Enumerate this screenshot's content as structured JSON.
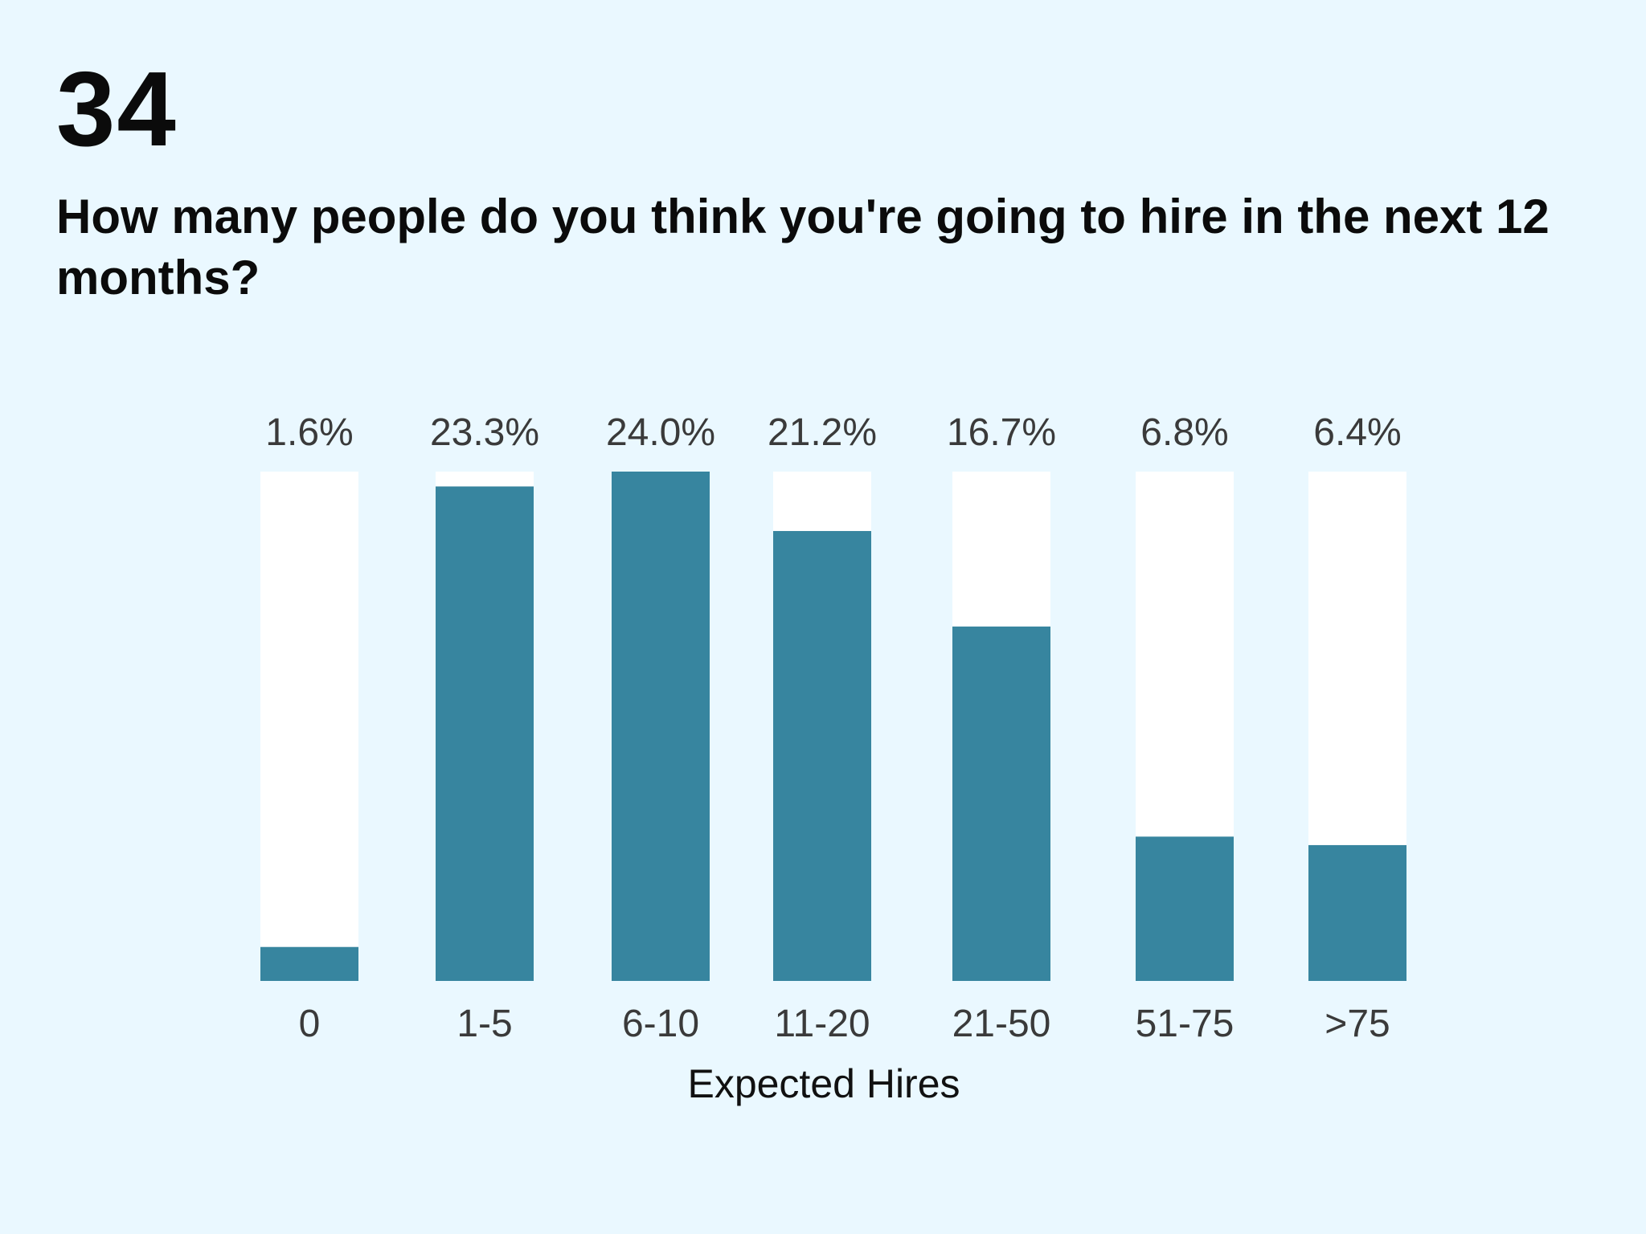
{
  "slide": {
    "number": "34",
    "question": "How many people do you think you're going to hire in the next 12 months?"
  },
  "colors": {
    "background": "#eaf8ff",
    "bar_fill": "#37859f",
    "bar_track": "#ffffff"
  },
  "chart_data": {
    "type": "bar",
    "categories": [
      "0",
      "1-5",
      "6-10",
      "11-20",
      "21-50",
      "51-75",
      ">75"
    ],
    "values": [
      1.6,
      23.3,
      24.0,
      21.2,
      16.7,
      6.8,
      6.4
    ],
    "value_labels": [
      "1.6%",
      "23.3%",
      "24.0%",
      "21.2%",
      "16.7%",
      "6.8%",
      "6.4%"
    ],
    "xlabel": "Expected Hires",
    "ylabel": "",
    "ylim": [
      0,
      24.0
    ],
    "grid": false,
    "legend": "none"
  }
}
